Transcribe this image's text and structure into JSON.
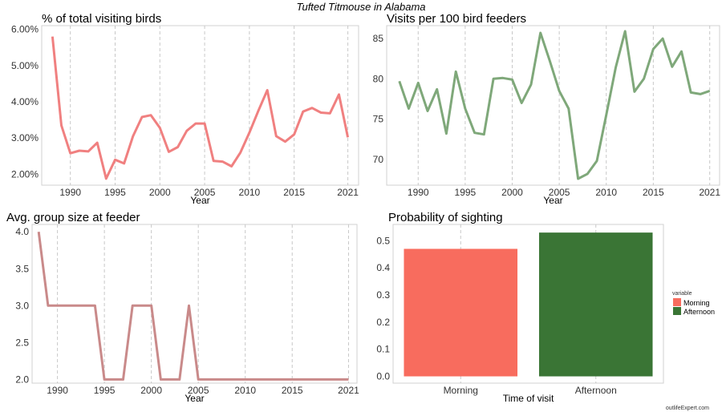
{
  "title": "Tufted Titmouse in Alabama",
  "credit": "outlifeExpert.com",
  "chart_data": [
    {
      "type": "line",
      "title": "% of total visiting birds",
      "xlabel": "Year",
      "ylabel": "",
      "color": "#f08080",
      "x": [
        1988,
        1989,
        1990,
        1991,
        1992,
        1993,
        1994,
        1995,
        1996,
        1997,
        1998,
        1999,
        2000,
        2001,
        2002,
        2003,
        2004,
        2005,
        2006,
        2007,
        2008,
        2009,
        2010,
        2011,
        2012,
        2013,
        2014,
        2015,
        2016,
        2017,
        2018,
        2019,
        2020,
        2021
      ],
      "values": [
        5.8,
        3.35,
        2.58,
        2.65,
        2.63,
        2.87,
        1.88,
        2.4,
        2.3,
        3.05,
        3.58,
        3.63,
        3.28,
        2.62,
        2.75,
        3.2,
        3.4,
        3.4,
        2.37,
        2.35,
        2.22,
        2.6,
        3.15,
        3.75,
        4.32,
        3.05,
        2.9,
        3.1,
        3.73,
        3.83,
        3.7,
        3.68,
        4.2,
        3.02
      ],
      "xticks": [
        1990,
        1995,
        2000,
        2005,
        2010,
        2015,
        2021
      ],
      "yticks": [
        "2.00%",
        "3.00%",
        "4.00%",
        "5.00%",
        "6.00%"
      ],
      "ytick_values": [
        2,
        3,
        4,
        5,
        6
      ],
      "ylim": [
        1.7,
        6.1
      ]
    },
    {
      "type": "line",
      "title": "Visits per 100 bird feeders",
      "xlabel": "Year",
      "ylabel": "",
      "color": "#7fa87a",
      "x": [
        1988,
        1989,
        1990,
        1991,
        1992,
        1993,
        1994,
        1995,
        1996,
        1997,
        1998,
        1999,
        2000,
        2001,
        2002,
        2003,
        2004,
        2005,
        2006,
        2007,
        2008,
        2009,
        2010,
        2011,
        2012,
        2013,
        2014,
        2015,
        2016,
        2017,
        2018,
        2019,
        2020,
        2021
      ],
      "values": [
        79.7,
        76.3,
        79.5,
        76,
        78.7,
        73.2,
        80.9,
        76.3,
        73.3,
        73.1,
        80,
        80.1,
        79.9,
        77,
        79.3,
        85.7,
        82.2,
        78.5,
        76.3,
        67.6,
        68.2,
        69.8,
        75.5,
        81.4,
        85.9,
        78.4,
        80,
        83.7,
        85,
        81.5,
        83.4,
        78.3,
        78.1,
        78.5
      ],
      "xticks": [
        1990,
        1995,
        2000,
        2005,
        2010,
        2015,
        2021
      ],
      "yticks": [
        "70",
        "75",
        "80",
        "85"
      ],
      "ytick_values": [
        70,
        75,
        80,
        85
      ],
      "ylim": [
        66.8,
        86.6
      ]
    },
    {
      "type": "line",
      "title": "Avg. group size at feeder",
      "xlabel": "Year",
      "ylabel": "",
      "color": "#c98a8a",
      "x": [
        1988,
        1989,
        1990,
        1991,
        1992,
        1993,
        1994,
        1995,
        1996,
        1997,
        1998,
        1999,
        2000,
        2001,
        2002,
        2003,
        2004,
        2005,
        2006,
        2007,
        2008,
        2009,
        2010,
        2011,
        2012,
        2013,
        2014,
        2015,
        2016,
        2017,
        2018,
        2019,
        2020,
        2021
      ],
      "values": [
        4,
        3,
        3,
        3,
        3,
        3,
        3,
        2,
        2,
        2,
        3,
        3,
        3,
        2,
        2,
        2,
        3,
        2,
        2,
        2,
        2,
        2,
        2,
        2,
        2,
        2,
        2,
        2,
        2,
        2,
        2,
        2,
        2,
        2
      ],
      "xticks": [
        1990,
        1995,
        2000,
        2005,
        2010,
        2015,
        2021
      ],
      "yticks": [
        "2.0",
        "2.5",
        "3.0",
        "3.5",
        "4.0"
      ],
      "ytick_values": [
        2,
        2.5,
        3,
        3.5,
        4
      ],
      "ylim": [
        1.95,
        4.1
      ]
    },
    {
      "type": "bar",
      "title": "Probability of sighting",
      "xlabel": "Time of visit",
      "ylabel": "",
      "categories": [
        "Morning",
        "Afternoon"
      ],
      "values": [
        0.47,
        0.53
      ],
      "colors": [
        "#f86c5e",
        "#3a7535"
      ],
      "yticks": [
        "0.0",
        "0.1",
        "0.2",
        "0.3",
        "0.4",
        "0.5"
      ],
      "ytick_values": [
        0,
        0.1,
        0.2,
        0.3,
        0.4,
        0.5
      ],
      "ylim": [
        -0.025,
        0.56
      ],
      "legend": {
        "title": "variable",
        "entries": [
          "Morning",
          "Afternoon"
        ],
        "placement": "right"
      }
    }
  ]
}
